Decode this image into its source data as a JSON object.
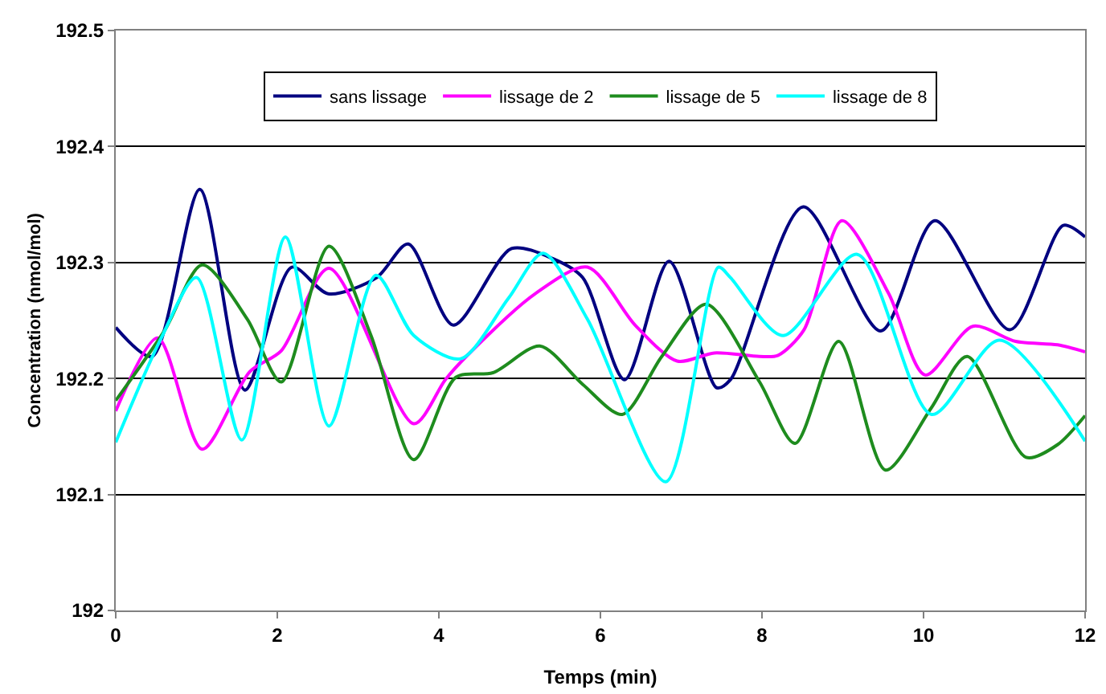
{
  "chart_data": {
    "type": "line",
    "xlabel": "Temps (min)",
    "ylabel": "Concentration (nmol/mol)",
    "xlim": [
      0,
      12
    ],
    "xticks": [
      0,
      2,
      4,
      6,
      8,
      10,
      12
    ],
    "ylim": [
      192,
      192.5
    ],
    "yticks": [
      192,
      192.1,
      192.2,
      192.3,
      192.4,
      192.5
    ],
    "grid": "y",
    "legend": "top",
    "marker": "none",
    "line_style": "solid",
    "series": [
      {
        "name": "sans lissage",
        "color": "#000080",
        "x": [
          0,
          0.45,
          1.04,
          1.6,
          2.18,
          2.63,
          3.23,
          3.62,
          4.18,
          4.9,
          5.42,
          5.78,
          6.3,
          6.85,
          7.44,
          7.61,
          8.51,
          9.47,
          10.14,
          11.07,
          11.73,
          12
        ],
        "values": [
          192.244,
          192.219,
          192.363,
          192.19,
          192.296,
          192.273,
          192.287,
          192.316,
          192.246,
          192.312,
          192.303,
          192.287,
          192.199,
          192.301,
          192.192,
          192.199,
          192.348,
          192.241,
          192.336,
          192.242,
          192.332,
          192.322
        ]
      },
      {
        "name": "lissage de 2",
        "color": "#ff00ff",
        "x": [
          0,
          0.52,
          1.07,
          1.66,
          2.05,
          2.64,
          3.69,
          4.08,
          4.34,
          5.19,
          5.84,
          6.43,
          6.95,
          7.41,
          7.97,
          8.2,
          8.52,
          8.99,
          9.57,
          10.02,
          10.61,
          11.14,
          11.66,
          12
        ],
        "values": [
          192.172,
          192.235,
          192.139,
          192.206,
          192.224,
          192.295,
          192.161,
          192.199,
          192.219,
          192.273,
          192.296,
          192.246,
          192.215,
          192.222,
          192.219,
          192.22,
          192.242,
          192.336,
          192.273,
          192.203,
          192.245,
          192.232,
          192.229,
          192.223
        ]
      },
      {
        "name": "lissage de 5",
        "color": "#1e8c1e",
        "x": [
          0,
          0.61,
          1.07,
          1.63,
          2.05,
          2.64,
          3.16,
          3.69,
          4.21,
          4.67,
          5.25,
          5.78,
          6.27,
          6.76,
          7.31,
          7.97,
          8.41,
          8.95,
          9.53,
          10.09,
          10.54,
          11.27,
          11.66,
          12
        ],
        "values": [
          192.181,
          192.242,
          192.298,
          192.251,
          192.197,
          192.314,
          192.237,
          192.13,
          192.201,
          192.205,
          192.228,
          192.195,
          192.169,
          192.219,
          192.264,
          192.197,
          192.144,
          192.232,
          192.121,
          192.174,
          192.219,
          192.132,
          192.143,
          192.168
        ]
      },
      {
        "name": "lissage de 8",
        "color": "#00ffff",
        "x": [
          0,
          0.55,
          1.0,
          1.56,
          2.1,
          2.64,
          3.22,
          3.69,
          4.27,
          4.86,
          5.29,
          5.84,
          6.81,
          7.46,
          7.61,
          8.26,
          9.18,
          10.1,
          10.94,
          12
        ],
        "values": [
          192.145,
          192.233,
          192.287,
          192.147,
          192.322,
          192.159,
          192.289,
          192.237,
          192.217,
          192.269,
          192.308,
          192.251,
          192.111,
          192.296,
          192.287,
          192.237,
          192.307,
          192.169,
          192.233,
          192.146
        ]
      }
    ]
  }
}
